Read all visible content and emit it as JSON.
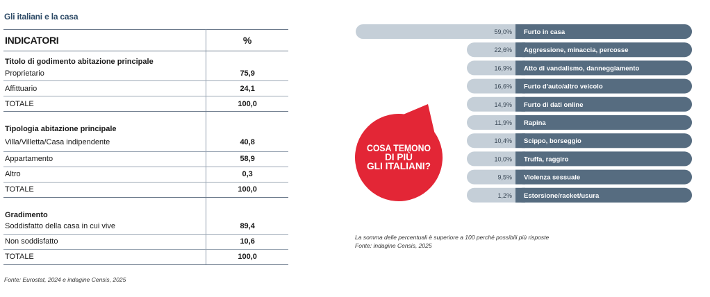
{
  "section_title": "Gli italiani e la casa",
  "table": {
    "header": {
      "label": "INDICATORI",
      "value": "%"
    },
    "groups": [
      {
        "title": "Titolo di godimento abitazione principale",
        "rows": [
          {
            "label": "Proprietario",
            "value": "75,9"
          },
          {
            "label": "Affittuario",
            "value": "24,1"
          },
          {
            "label": "TOTALE",
            "value": "100,0"
          }
        ]
      },
      {
        "title": "Tipologia abitazione principale",
        "rows": [
          {
            "label": "Villa/Villetta/Casa indipendente",
            "value": "40,8"
          },
          {
            "label": "Appartamento",
            "value": "58,9"
          },
          {
            "label": "Altro",
            "value": "0,3"
          },
          {
            "label": "TOTALE",
            "value": "100,0"
          }
        ]
      },
      {
        "title": "Gradimento",
        "rows": [
          {
            "label": "Soddisfatto della casa in cui vive",
            "value": "89,4"
          },
          {
            "label": "Non soddisfatto",
            "value": "10,6"
          },
          {
            "label": "TOTALE",
            "value": "100,0"
          }
        ]
      }
    ],
    "footnote": "Fonte: Eurostat, 2024 e indagine Censis, 2025"
  },
  "chart_data": {
    "type": "bar",
    "orientation": "horizontal",
    "title": "COSA TEMONO DI PIÙ GLI ITALIANI?",
    "title_lines": [
      "COSA TEMONO",
      "DI PIÙ",
      "GLI ITALIANI?"
    ],
    "categories": [
      "Furto in casa",
      "Aggressione, minaccia, percosse",
      "Atto di vandalismo, danneggiamento",
      "Furto d'auto/altro veicolo",
      "Furto di dati online",
      "Rapina",
      "Scippo, borseggio",
      "Truffa, raggiro",
      "Violenza sessuale",
      "Estorsione/racket/usura"
    ],
    "values": [
      59.0,
      22.6,
      16.9,
      16.6,
      14.9,
      11.9,
      10.4,
      10.0,
      9.5,
      1.2
    ],
    "value_labels": [
      "59,0%",
      "22,6%",
      "16,9%",
      "16,6%",
      "14,9%",
      "11,9%",
      "10,4%",
      "10,0%",
      "9,5%",
      "1,2%"
    ],
    "unit": "%",
    "colors": {
      "bar": "#566c80",
      "track": "#c5cfd8",
      "bubble": "#e32636",
      "text_on_bar": "#ffffff",
      "value_text": "#3c4a58"
    },
    "footnotes": [
      "La somma delle percentuali è superiore a 100 perché possibili più risposte",
      "Fonte: indagine Censis, 2025"
    ]
  }
}
